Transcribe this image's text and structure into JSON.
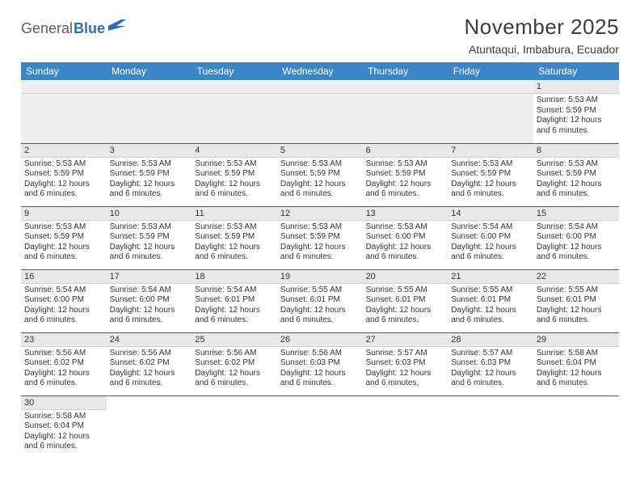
{
  "logo": {
    "text1": "General",
    "text2": "Blue"
  },
  "title": "November 2025",
  "location": "Atuntaqui, Imbabura, Ecuador",
  "colors": {
    "header_bg": "#3b86c6",
    "header_text": "#ffffff",
    "daynum_bg": "#e8e8e8",
    "row_border": "#2f5f8f",
    "body_text": "#333333",
    "logo_gray": "#5b5b5b",
    "logo_blue": "#2f6fab"
  },
  "weekdays": [
    "Sunday",
    "Monday",
    "Tuesday",
    "Wednesday",
    "Thursday",
    "Friday",
    "Saturday"
  ],
  "startOffset": 6,
  "daysInMonth": 30,
  "days": {
    "1": {
      "sunrise": "5:53 AM",
      "sunset": "5:59 PM",
      "daylight": "12 hours and 6 minutes."
    },
    "2": {
      "sunrise": "5:53 AM",
      "sunset": "5:59 PM",
      "daylight": "12 hours and 6 minutes."
    },
    "3": {
      "sunrise": "5:53 AM",
      "sunset": "5:59 PM",
      "daylight": "12 hours and 6 minutes."
    },
    "4": {
      "sunrise": "5:53 AM",
      "sunset": "5:59 PM",
      "daylight": "12 hours and 6 minutes."
    },
    "5": {
      "sunrise": "5:53 AM",
      "sunset": "5:59 PM",
      "daylight": "12 hours and 6 minutes."
    },
    "6": {
      "sunrise": "5:53 AM",
      "sunset": "5:59 PM",
      "daylight": "12 hours and 6 minutes."
    },
    "7": {
      "sunrise": "5:53 AM",
      "sunset": "5:59 PM",
      "daylight": "12 hours and 6 minutes."
    },
    "8": {
      "sunrise": "5:53 AM",
      "sunset": "5:59 PM",
      "daylight": "12 hours and 6 minutes."
    },
    "9": {
      "sunrise": "5:53 AM",
      "sunset": "5:59 PM",
      "daylight": "12 hours and 6 minutes."
    },
    "10": {
      "sunrise": "5:53 AM",
      "sunset": "5:59 PM",
      "daylight": "12 hours and 6 minutes."
    },
    "11": {
      "sunrise": "5:53 AM",
      "sunset": "5:59 PM",
      "daylight": "12 hours and 6 minutes."
    },
    "12": {
      "sunrise": "5:53 AM",
      "sunset": "5:59 PM",
      "daylight": "12 hours and 6 minutes."
    },
    "13": {
      "sunrise": "5:53 AM",
      "sunset": "6:00 PM",
      "daylight": "12 hours and 6 minutes."
    },
    "14": {
      "sunrise": "5:54 AM",
      "sunset": "6:00 PM",
      "daylight": "12 hours and 6 minutes."
    },
    "15": {
      "sunrise": "5:54 AM",
      "sunset": "6:00 PM",
      "daylight": "12 hours and 6 minutes."
    },
    "16": {
      "sunrise": "5:54 AM",
      "sunset": "6:00 PM",
      "daylight": "12 hours and 6 minutes."
    },
    "17": {
      "sunrise": "5:54 AM",
      "sunset": "6:00 PM",
      "daylight": "12 hours and 6 minutes."
    },
    "18": {
      "sunrise": "5:54 AM",
      "sunset": "6:01 PM",
      "daylight": "12 hours and 6 minutes."
    },
    "19": {
      "sunrise": "5:55 AM",
      "sunset": "6:01 PM",
      "daylight": "12 hours and 6 minutes."
    },
    "20": {
      "sunrise": "5:55 AM",
      "sunset": "6:01 PM",
      "daylight": "12 hours and 6 minutes."
    },
    "21": {
      "sunrise": "5:55 AM",
      "sunset": "6:01 PM",
      "daylight": "12 hours and 6 minutes."
    },
    "22": {
      "sunrise": "5:55 AM",
      "sunset": "6:01 PM",
      "daylight": "12 hours and 6 minutes."
    },
    "23": {
      "sunrise": "5:56 AM",
      "sunset": "6:02 PM",
      "daylight": "12 hours and 6 minutes."
    },
    "24": {
      "sunrise": "5:56 AM",
      "sunset": "6:02 PM",
      "daylight": "12 hours and 6 minutes."
    },
    "25": {
      "sunrise": "5:56 AM",
      "sunset": "6:02 PM",
      "daylight": "12 hours and 6 minutes."
    },
    "26": {
      "sunrise": "5:56 AM",
      "sunset": "6:03 PM",
      "daylight": "12 hours and 6 minutes."
    },
    "27": {
      "sunrise": "5:57 AM",
      "sunset": "6:03 PM",
      "daylight": "12 hours and 6 minutes."
    },
    "28": {
      "sunrise": "5:57 AM",
      "sunset": "6:03 PM",
      "daylight": "12 hours and 6 minutes."
    },
    "29": {
      "sunrise": "5:58 AM",
      "sunset": "6:04 PM",
      "daylight": "12 hours and 6 minutes."
    },
    "30": {
      "sunrise": "5:58 AM",
      "sunset": "6:04 PM",
      "daylight": "12 hours and 6 minutes."
    }
  },
  "labels": {
    "sunrise": "Sunrise:",
    "sunset": "Sunset:",
    "daylight": "Daylight:"
  }
}
